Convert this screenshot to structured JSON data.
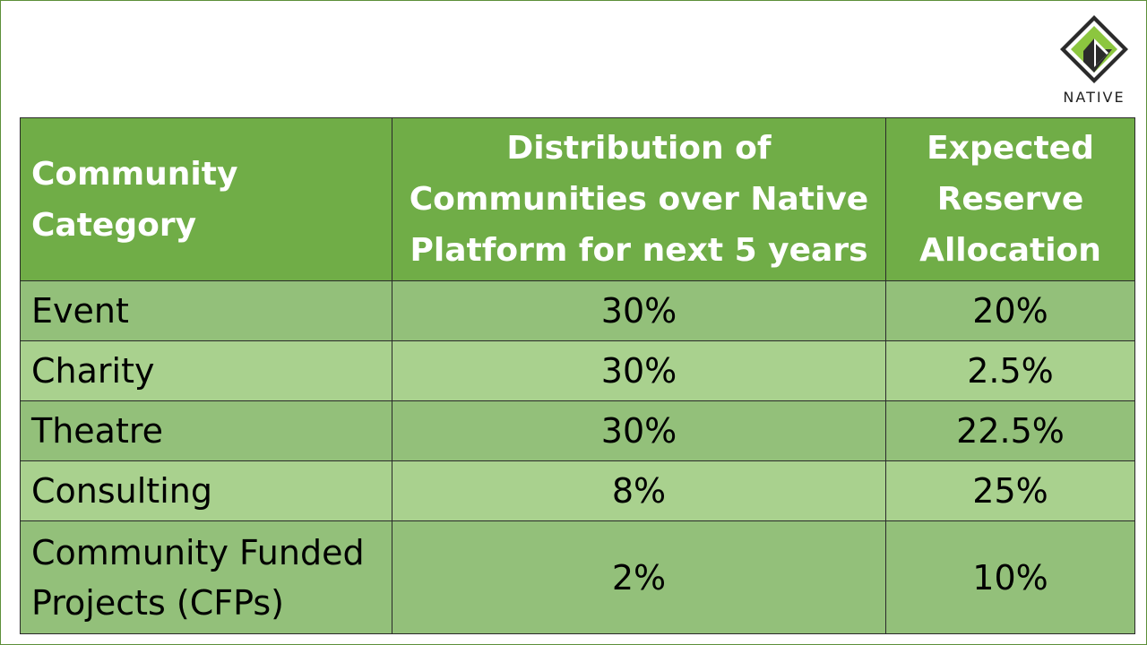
{
  "logo": {
    "text": "NATIVE"
  },
  "colors": {
    "header_bg": "#70ad47",
    "row_dark": "#93c07a",
    "row_light": "#a9d18e",
    "logo_green": "#8cc63f"
  },
  "table": {
    "headers": [
      "Community Category",
      "Distribution of Communities over Native Platform for next 5 years",
      "Expected Reserve Allocation"
    ],
    "rows": [
      {
        "category": "Event",
        "distribution": "30%",
        "allocation": "20%"
      },
      {
        "category": "Charity",
        "distribution": "30%",
        "allocation": "2.5%"
      },
      {
        "category": "Theatre",
        "distribution": "30%",
        "allocation": "22.5%"
      },
      {
        "category": "Consulting",
        "distribution": "8%",
        "allocation": "25%"
      },
      {
        "category": "Community Funded Projects (CFPs)",
        "distribution": "2%",
        "allocation": "10%"
      }
    ]
  }
}
